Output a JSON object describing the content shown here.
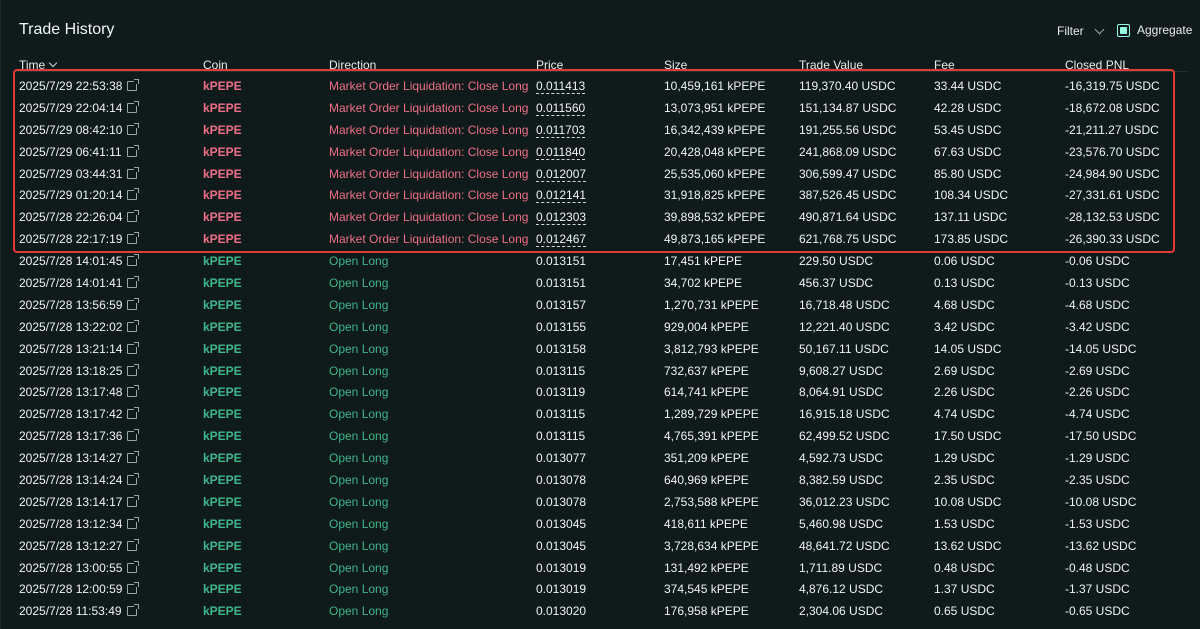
{
  "panel": {
    "title": "Trade History",
    "filter_label": "Filter",
    "aggregate_label": "Aggregate",
    "aggregate_checked": true
  },
  "columns": [
    "Time",
    "Coin",
    "Direction",
    "Price",
    "Size",
    "Trade Value",
    "Fee",
    "Closed PNL"
  ],
  "colors": {
    "accent": "#97fce4",
    "sell": "#ed7088",
    "buy": "#3fb68b",
    "highlight": "#e53935"
  },
  "rows": [
    {
      "time": "2025/7/29 22:53:38",
      "coin": "kPEPE",
      "direction": "Market Order Liquidation: Close Long",
      "side": "sell",
      "price": "0.011413",
      "size": "10,459,161 kPEPE",
      "value": "119,370.40 USDC",
      "fee": "33.44 USDC",
      "pnl": "-16,319.75 USDC"
    },
    {
      "time": "2025/7/29 22:04:14",
      "coin": "kPEPE",
      "direction": "Market Order Liquidation: Close Long",
      "side": "sell",
      "price": "0.011560",
      "size": "13,073,951 kPEPE",
      "value": "151,134.87 USDC",
      "fee": "42.28 USDC",
      "pnl": "-18,672.08 USDC"
    },
    {
      "time": "2025/7/29 08:42:10",
      "coin": "kPEPE",
      "direction": "Market Order Liquidation: Close Long",
      "side": "sell",
      "price": "0.011703",
      "size": "16,342,439 kPEPE",
      "value": "191,255.56 USDC",
      "fee": "53.45 USDC",
      "pnl": "-21,211.27 USDC"
    },
    {
      "time": "2025/7/29 06:41:11",
      "coin": "kPEPE",
      "direction": "Market Order Liquidation: Close Long",
      "side": "sell",
      "price": "0.011840",
      "size": "20,428,048 kPEPE",
      "value": "241,868.09 USDC",
      "fee": "67.63 USDC",
      "pnl": "-23,576.70 USDC"
    },
    {
      "time": "2025/7/29 03:44:31",
      "coin": "kPEPE",
      "direction": "Market Order Liquidation: Close Long",
      "side": "sell",
      "price": "0.012007",
      "size": "25,535,060 kPEPE",
      "value": "306,599.47 USDC",
      "fee": "85.80 USDC",
      "pnl": "-24,984.90 USDC"
    },
    {
      "time": "2025/7/29 01:20:14",
      "coin": "kPEPE",
      "direction": "Market Order Liquidation: Close Long",
      "side": "sell",
      "price": "0.012141",
      "size": "31,918,825 kPEPE",
      "value": "387,526.45 USDC",
      "fee": "108.34 USDC",
      "pnl": "-27,331.61 USDC"
    },
    {
      "time": "2025/7/28 22:26:04",
      "coin": "kPEPE",
      "direction": "Market Order Liquidation: Close Long",
      "side": "sell",
      "price": "0.012303",
      "size": "39,898,532 kPEPE",
      "value": "490,871.64 USDC",
      "fee": "137.11 USDC",
      "pnl": "-28,132.53 USDC"
    },
    {
      "time": "2025/7/28 22:17:19",
      "coin": "kPEPE",
      "direction": "Market Order Liquidation: Close Long",
      "side": "sell",
      "price": "0.012467",
      "size": "49,873,165 kPEPE",
      "value": "621,768.75 USDC",
      "fee": "173.85 USDC",
      "pnl": "-26,390.33 USDC"
    },
    {
      "time": "2025/7/28 14:01:45",
      "coin": "kPEPE",
      "direction": "Open Long",
      "side": "buy",
      "price": "0.013151",
      "size": "17,451 kPEPE",
      "value": "229.50 USDC",
      "fee": "0.06 USDC",
      "pnl": "-0.06 USDC"
    },
    {
      "time": "2025/7/28 14:01:41",
      "coin": "kPEPE",
      "direction": "Open Long",
      "side": "buy",
      "price": "0.013151",
      "size": "34,702 kPEPE",
      "value": "456.37 USDC",
      "fee": "0.13 USDC",
      "pnl": "-0.13 USDC"
    },
    {
      "time": "2025/7/28 13:56:59",
      "coin": "kPEPE",
      "direction": "Open Long",
      "side": "buy",
      "price": "0.013157",
      "size": "1,270,731 kPEPE",
      "value": "16,718.48 USDC",
      "fee": "4.68 USDC",
      "pnl": "-4.68 USDC"
    },
    {
      "time": "2025/7/28 13:22:02",
      "coin": "kPEPE",
      "direction": "Open Long",
      "side": "buy",
      "price": "0.013155",
      "size": "929,004 kPEPE",
      "value": "12,221.40 USDC",
      "fee": "3.42 USDC",
      "pnl": "-3.42 USDC"
    },
    {
      "time": "2025/7/28 13:21:14",
      "coin": "kPEPE",
      "direction": "Open Long",
      "side": "buy",
      "price": "0.013158",
      "size": "3,812,793 kPEPE",
      "value": "50,167.11 USDC",
      "fee": "14.05 USDC",
      "pnl": "-14.05 USDC"
    },
    {
      "time": "2025/7/28 13:18:25",
      "coin": "kPEPE",
      "direction": "Open Long",
      "side": "buy",
      "price": "0.013115",
      "size": "732,637 kPEPE",
      "value": "9,608.27 USDC",
      "fee": "2.69 USDC",
      "pnl": "-2.69 USDC"
    },
    {
      "time": "2025/7/28 13:17:48",
      "coin": "kPEPE",
      "direction": "Open Long",
      "side": "buy",
      "price": "0.013119",
      "size": "614,741 kPEPE",
      "value": "8,064.91 USDC",
      "fee": "2.26 USDC",
      "pnl": "-2.26 USDC"
    },
    {
      "time": "2025/7/28 13:17:42",
      "coin": "kPEPE",
      "direction": "Open Long",
      "side": "buy",
      "price": "0.013115",
      "size": "1,289,729 kPEPE",
      "value": "16,915.18 USDC",
      "fee": "4.74 USDC",
      "pnl": "-4.74 USDC"
    },
    {
      "time": "2025/7/28 13:17:36",
      "coin": "kPEPE",
      "direction": "Open Long",
      "side": "buy",
      "price": "0.013115",
      "size": "4,765,391 kPEPE",
      "value": "62,499.52 USDC",
      "fee": "17.50 USDC",
      "pnl": "-17.50 USDC"
    },
    {
      "time": "2025/7/28 13:14:27",
      "coin": "kPEPE",
      "direction": "Open Long",
      "side": "buy",
      "price": "0.013077",
      "size": "351,209 kPEPE",
      "value": "4,592.73 USDC",
      "fee": "1.29 USDC",
      "pnl": "-1.29 USDC"
    },
    {
      "time": "2025/7/28 13:14:24",
      "coin": "kPEPE",
      "direction": "Open Long",
      "side": "buy",
      "price": "0.013078",
      "size": "640,969 kPEPE",
      "value": "8,382.59 USDC",
      "fee": "2.35 USDC",
      "pnl": "-2.35 USDC"
    },
    {
      "time": "2025/7/28 13:14:17",
      "coin": "kPEPE",
      "direction": "Open Long",
      "side": "buy",
      "price": "0.013078",
      "size": "2,753,588 kPEPE",
      "value": "36,012.23 USDC",
      "fee": "10.08 USDC",
      "pnl": "-10.08 USDC"
    },
    {
      "time": "2025/7/28 13:12:34",
      "coin": "kPEPE",
      "direction": "Open Long",
      "side": "buy",
      "price": "0.013045",
      "size": "418,611 kPEPE",
      "value": "5,460.98 USDC",
      "fee": "1.53 USDC",
      "pnl": "-1.53 USDC"
    },
    {
      "time": "2025/7/28 13:12:27",
      "coin": "kPEPE",
      "direction": "Open Long",
      "side": "buy",
      "price": "0.013045",
      "size": "3,728,634 kPEPE",
      "value": "48,641.72 USDC",
      "fee": "13.62 USDC",
      "pnl": "-13.62 USDC"
    },
    {
      "time": "2025/7/28 13:00:55",
      "coin": "kPEPE",
      "direction": "Open Long",
      "side": "buy",
      "price": "0.013019",
      "size": "131,492 kPEPE",
      "value": "1,711.89 USDC",
      "fee": "0.48 USDC",
      "pnl": "-0.48 USDC"
    },
    {
      "time": "2025/7/28 12:00:59",
      "coin": "kPEPE",
      "direction": "Open Long",
      "side": "buy",
      "price": "0.013019",
      "size": "374,545 kPEPE",
      "value": "4,876.12 USDC",
      "fee": "1.37 USDC",
      "pnl": "-1.37 USDC"
    },
    {
      "time": "2025/7/28 11:53:49",
      "coin": "kPEPE",
      "direction": "Open Long",
      "side": "buy",
      "price": "0.013020",
      "size": "176,958 kPEPE",
      "value": "2,304.06 USDC",
      "fee": "0.65 USDC",
      "pnl": "-0.65 USDC"
    }
  ]
}
